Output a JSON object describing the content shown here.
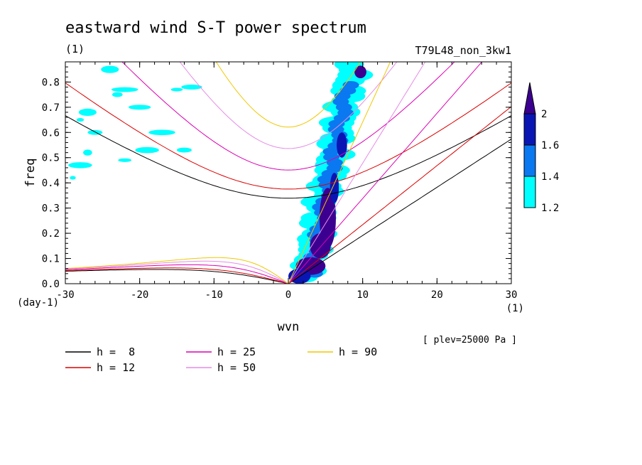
{
  "chart_data": {
    "type": "heatmap",
    "title": "eastward wind S-T power spectrum",
    "subtitle_left": "(1)",
    "subtitle_right": "T79L48_non_3kw1",
    "xlabel": "wvn",
    "ylabel": "freq",
    "x_unit_label": "(1)",
    "y_unit_label": "(day-1)",
    "level_annotation": "[ plev=25000 Pa ]",
    "xlim": [
      -30,
      30
    ],
    "ylim": [
      0,
      0.88
    ],
    "x_ticks": [
      "-30",
      "-20",
      "-10",
      "0",
      "10",
      "20",
      "30"
    ],
    "y_ticks": [
      "0.0",
      "0.1",
      "0.2",
      "0.3",
      "0.4",
      "0.5",
      "0.6",
      "0.7",
      "0.8"
    ],
    "colorbar": {
      "levels": [
        "1.2",
        "1.4",
        "1.6",
        "2"
      ],
      "colors": [
        "#00ffff",
        "#0a78f0",
        "#0a16b4",
        "#3c0090"
      ]
    },
    "dispersion_curves": [
      {
        "label": "h = 8",
        "color": "#000000"
      },
      {
        "label": "h = 12",
        "color": "#dc0000"
      },
      {
        "label": "h = 25",
        "color": "#dc00b4"
      },
      {
        "label": "h = 50",
        "color": "#e58ce6"
      },
      {
        "label": "h = 90",
        "color": "#f0c800"
      }
    ],
    "power_regions": [
      {
        "level": 4,
        "cx": 5.3,
        "cy": 0.26,
        "rx": 1.1,
        "ry": 0.12
      },
      {
        "level": 4,
        "cx": 4.3,
        "cy": 0.15,
        "rx": 1.4,
        "ry": 0.05
      },
      {
        "level": 4,
        "cx": 3.0,
        "cy": 0.07,
        "rx": 2.0,
        "ry": 0.035
      },
      {
        "level": 4,
        "cx": 9.7,
        "cy": 0.84,
        "rx": 0.8,
        "ry": 0.025
      },
      {
        "level": 3,
        "cx": 6.2,
        "cy": 0.38,
        "rx": 0.6,
        "ry": 0.06
      },
      {
        "level": 3,
        "cx": 7.2,
        "cy": 0.55,
        "rx": 0.7,
        "ry": 0.05
      },
      {
        "level": 3,
        "cx": 1.5,
        "cy": 0.03,
        "rx": 1.5,
        "ry": 0.03
      }
    ]
  },
  "legend": {
    "items": [
      "h =  8",
      "h = 12",
      "h = 25",
      "h = 50",
      "h = 90"
    ]
  }
}
